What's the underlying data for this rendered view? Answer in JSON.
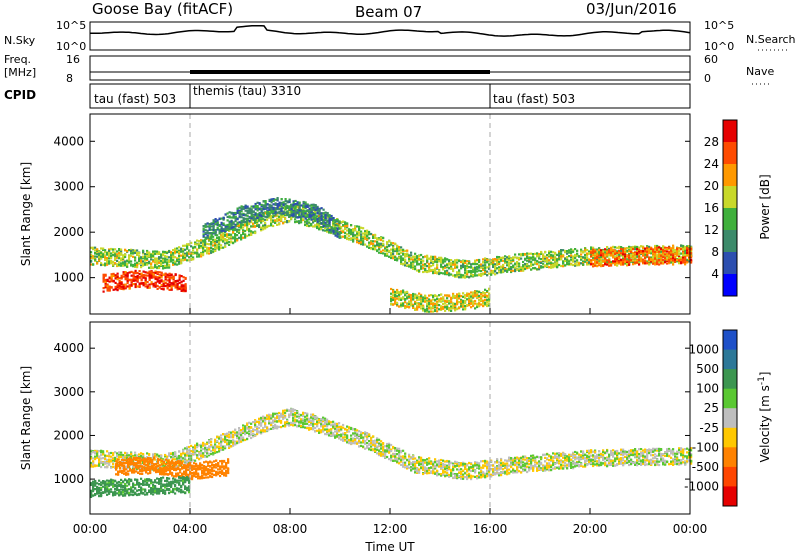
{
  "header": {
    "station": "Goose Bay (fitACF)",
    "beam": "Beam 07",
    "date": "03/Jun/2016"
  },
  "top_panels": {
    "nsky_label": "N.Sky",
    "nsky_ticks": [
      "10^5",
      "10^0"
    ],
    "nsearch_label": "N.Search",
    "nsearch_ticks": [
      "10^5",
      "10^0"
    ],
    "freq_label": "Freq.",
    "freq_unit": "[MHz]",
    "freq_ticks": [
      "16",
      "8"
    ],
    "nave_label": "Nave",
    "nave_ticks": [
      "60",
      "0"
    ],
    "cpid_label": "CPID",
    "cpid_segments": [
      {
        "label": "tau (fast) 503",
        "start_hour": 0,
        "end_hour": 4
      },
      {
        "label": "themis (tau) 3310",
        "start_hour": 4,
        "end_hour": 16
      },
      {
        "label": "tau (fast) 503",
        "start_hour": 16,
        "end_hour": 24
      }
    ]
  },
  "chart_data": [
    {
      "type": "heatmap",
      "name": "power",
      "title": "",
      "ylabel": "Slant Range [km]",
      "xlabel": "",
      "xlim": [
        0,
        24
      ],
      "ylim": [
        200,
        4600
      ],
      "y_ticks": [
        1000,
        2000,
        3000,
        4000
      ],
      "colorbar": {
        "label": "Power [dB]",
        "ticks": [
          4,
          8,
          12,
          16,
          20,
          24,
          28
        ],
        "colors": [
          "#0000ff",
          "#2d4fb0",
          "#3c8a6a",
          "#3fb03c",
          "#c8d82a",
          "#ff9900",
          "#ff4b00",
          "#e60000"
        ]
      },
      "features": [
        {
          "name": "main F-region band",
          "points": [
            [
              0,
              1500
            ],
            [
              3,
              1400
            ],
            [
              5,
              1800
            ],
            [
              7,
              2300
            ],
            [
              8,
              2450
            ],
            [
              9,
              2300
            ],
            [
              11,
              1900
            ],
            [
              13,
              1350
            ],
            [
              15,
              1200
            ],
            [
              17,
              1350
            ],
            [
              20,
              1500
            ],
            [
              24,
              1550
            ]
          ],
          "power_db": 16
        },
        {
          "name": "upper band",
          "points": [
            [
              4.5,
              2000
            ],
            [
              6,
              2400
            ],
            [
              7.5,
              2600
            ],
            [
              9,
              2450
            ],
            [
              10,
              2050
            ]
          ],
          "power_db": 10
        },
        {
          "name": "morning high-power patch",
          "points": [
            [
              0.5,
              900
            ],
            [
              2,
              1000
            ],
            [
              3,
              950
            ],
            [
              3.8,
              900
            ]
          ],
          "power_db": 28
        },
        {
          "name": "midday low-range echoes",
          "points": [
            [
              12,
              600
            ],
            [
              13.5,
              450
            ],
            [
              15,
              500
            ],
            [
              16,
              600
            ]
          ],
          "power_db": 18
        },
        {
          "name": "evening high-power band",
          "points": [
            [
              20,
              1450
            ],
            [
              22,
              1500
            ],
            [
              24,
              1500
            ]
          ],
          "power_db": 24
        }
      ]
    },
    {
      "type": "heatmap",
      "name": "velocity",
      "title": "",
      "ylabel": "Slant Range [km]",
      "xlabel": "Time UT",
      "xlim": [
        0,
        24
      ],
      "ylim": [
        200,
        4600
      ],
      "x_tick_labels": [
        "00:00",
        "04:00",
        "08:00",
        "12:00",
        "16:00",
        "20:00",
        "00:00"
      ],
      "y_ticks": [
        1000,
        2000,
        3000,
        4000
      ],
      "colorbar": {
        "label": "Velocity [m s^-1]",
        "ticks": [
          "1000",
          "500",
          "100",
          "25",
          "-25",
          "-100",
          "-500",
          "-1000"
        ],
        "colors": [
          "#1e50c8",
          "#2d7898",
          "#3c9650",
          "#5ac832",
          "#bebebe",
          "#ffc800",
          "#ff8200",
          "#ff4600",
          "#e60000"
        ]
      },
      "features": [
        {
          "name": "ground scatter band",
          "points": [
            [
              0,
              1500
            ],
            [
              3,
              1400
            ],
            [
              5,
              1800
            ],
            [
              7,
              2300
            ],
            [
              8,
              2450
            ],
            [
              9,
              2300
            ],
            [
              11,
              1900
            ],
            [
              13,
              1350
            ],
            [
              15,
              1200
            ],
            [
              17,
              1350
            ],
            [
              20,
              1500
            ],
            [
              24,
              1550
            ]
          ],
          "velocity": 0
        },
        {
          "name": "morning negative-velocity patch",
          "points": [
            [
              1,
              1300
            ],
            [
              2.5,
              1350
            ],
            [
              4,
              1200
            ],
            [
              5.5,
              1300
            ]
          ],
          "velocity": -400
        },
        {
          "name": "morning positive-velocity echoes",
          "points": [
            [
              0,
              800
            ],
            [
              2,
              850
            ],
            [
              4,
              900
            ]
          ],
          "velocity": 150
        }
      ]
    }
  ]
}
